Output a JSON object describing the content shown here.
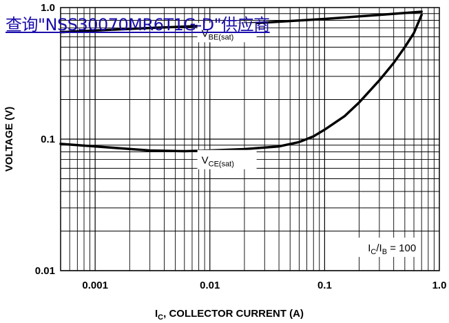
{
  "overlay_link": {
    "text": "查询\"NSS30070MR6T1G-D\"供应商",
    "color": "#1a0dab"
  },
  "chart_data": {
    "type": "line",
    "x_scale": "log",
    "y_scale": "log",
    "xlim": [
      0.0005,
      1.0
    ],
    "ylim": [
      0.01,
      1.0
    ],
    "grid": true,
    "xlabel": {
      "main": "I",
      "sub": "C",
      "rest": ", COLLECTOR CURRENT (A)"
    },
    "ylabel": "VOLTAGE (V)",
    "x_ticks": [
      {
        "value": 0.001,
        "label": "0.001"
      },
      {
        "value": 0.01,
        "label": "0.01"
      },
      {
        "value": 0.1,
        "label": "0.1"
      },
      {
        "value": 1.0,
        "label": "1.0"
      }
    ],
    "y_ticks": [
      {
        "value": 0.01,
        "label": "0.01"
      },
      {
        "value": 0.1,
        "label": "0.1"
      },
      {
        "value": 1.0,
        "label": "1.0"
      }
    ],
    "series": [
      {
        "name": "VBE(sat)",
        "label_main": "V",
        "label_sub": "BE(sat)",
        "label_at": [
          0.008,
          0.6
        ],
        "x": [
          0.0005,
          0.001,
          0.003,
          0.01,
          0.03,
          0.1,
          0.3,
          0.7
        ],
        "y": [
          0.65,
          0.67,
          0.7,
          0.73,
          0.77,
          0.82,
          0.88,
          0.93
        ]
      },
      {
        "name": "VCE(sat)",
        "label_main": "V",
        "label_sub": "CE(sat)",
        "label_at": [
          0.008,
          0.065
        ],
        "x": [
          0.0005,
          0.001,
          0.003,
          0.006,
          0.01,
          0.02,
          0.04,
          0.06,
          0.08,
          0.1,
          0.15,
          0.2,
          0.3,
          0.4,
          0.5,
          0.6,
          0.7
        ],
        "y": [
          0.092,
          0.088,
          0.082,
          0.081,
          0.082,
          0.084,
          0.088,
          0.095,
          0.105,
          0.118,
          0.15,
          0.19,
          0.28,
          0.38,
          0.5,
          0.64,
          0.88
        ]
      }
    ],
    "annotations": [
      {
        "main": "I",
        "sub1": "C",
        "mid": "/I",
        "sub2": "B",
        "rest": " = 100",
        "at": [
          0.7,
          0.014
        ]
      }
    ]
  }
}
